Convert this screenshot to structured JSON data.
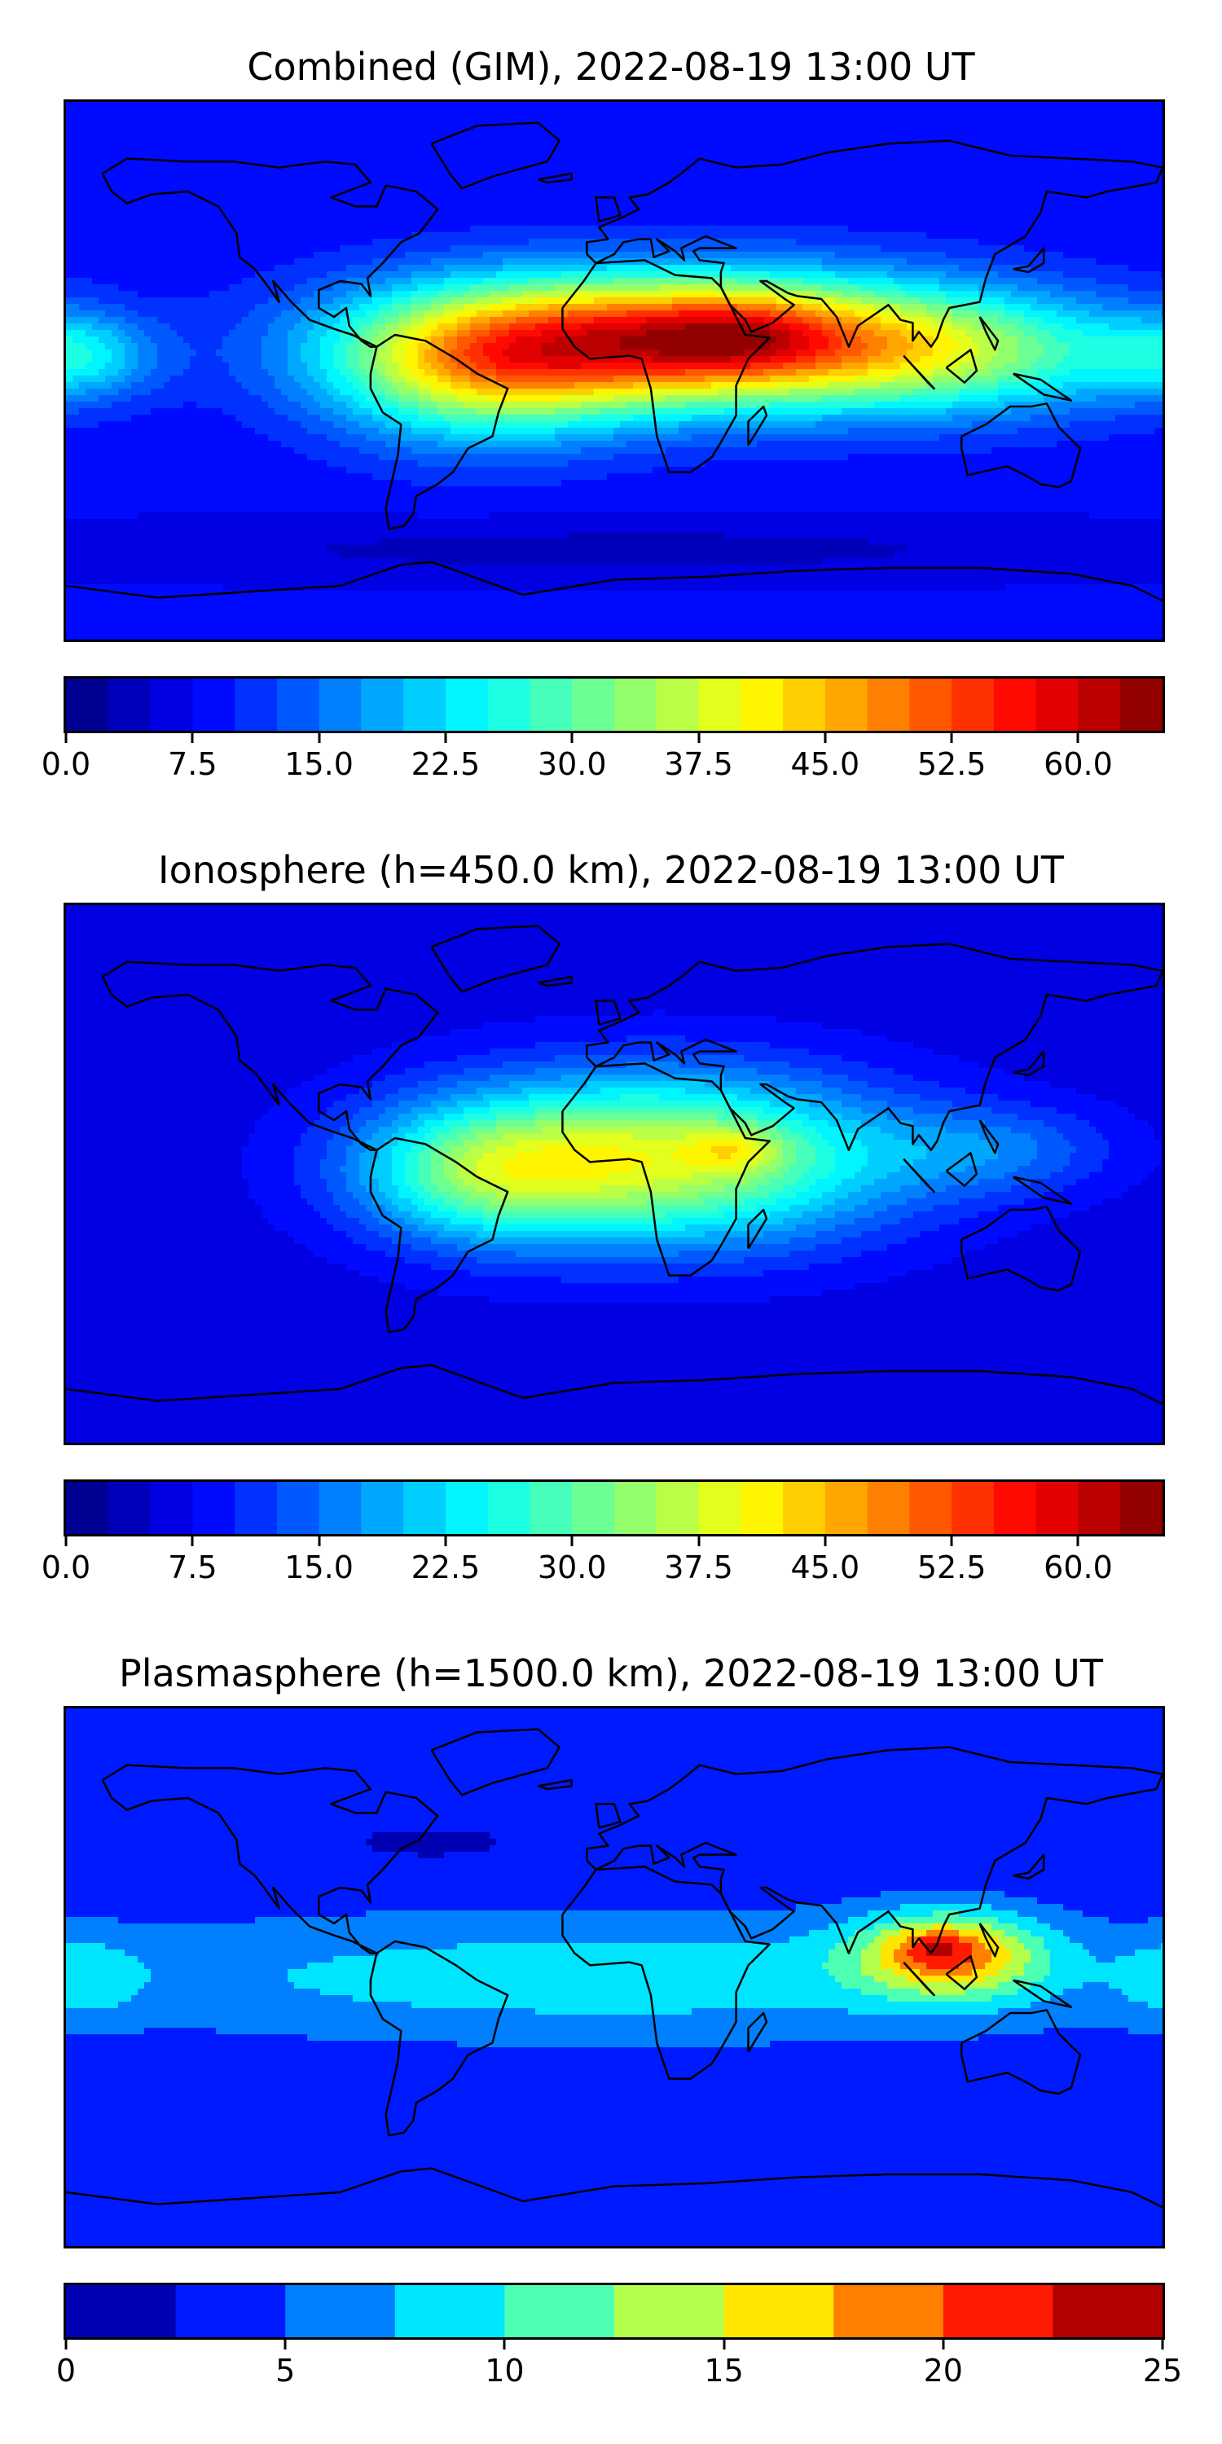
{
  "panels": [
    {
      "title": "Combined (GIM), 2022-08-19 13:00 UT",
      "colorbar": {
        "min": 0,
        "max": 65,
        "levels": 26,
        "colormap": "jet",
        "ticks": [
          "0.0",
          "7.5",
          "15.0",
          "22.5",
          "30.0",
          "37.5",
          "45.0",
          "52.5",
          "60.0"
        ],
        "tick_values": [
          0,
          7.5,
          15,
          22.5,
          30,
          37.5,
          45,
          52.5,
          60
        ]
      },
      "field": {
        "background": 8,
        "features": [
          {
            "lon": 25,
            "lat": 10,
            "rx": 90,
            "ry": 22,
            "amp": 48
          },
          {
            "lon": 40,
            "lat": 12,
            "rx": 30,
            "ry": 12,
            "amp": 8
          },
          {
            "lon": -45,
            "lat": 0,
            "rx": 50,
            "ry": 25,
            "amp": 22
          },
          {
            "lon": 120,
            "lat": 5,
            "rx": 60,
            "ry": 20,
            "amp": 14
          },
          {
            "lon": -175,
            "lat": 5,
            "rx": 25,
            "ry": 14,
            "amp": 12
          },
          {
            "lon": 0,
            "lat": -60,
            "rx": 180,
            "ry": 10,
            "amp": -4
          }
        ]
      }
    },
    {
      "title": "Ionosphere  (h=450.0 km), 2022-08-19 13:00 UT",
      "colorbar": {
        "min": 0,
        "max": 65,
        "levels": 26,
        "colormap": "jet",
        "ticks": [
          "0.0",
          "7.5",
          "15.0",
          "22.5",
          "30.0",
          "37.5",
          "45.0",
          "52.5",
          "60.0"
        ],
        "tick_values": [
          0,
          7.5,
          15,
          22.5,
          30,
          37.5,
          45,
          52.5,
          60
        ]
      },
      "field": {
        "background": 6,
        "features": [
          {
            "lon": 15,
            "lat": 5,
            "rx": 75,
            "ry": 28,
            "amp": 32
          },
          {
            "lon": 40,
            "lat": 8,
            "rx": 15,
            "ry": 7,
            "amp": 8
          },
          {
            "lon": -45,
            "lat": 0,
            "rx": 40,
            "ry": 22,
            "amp": 15
          },
          {
            "lon": 125,
            "lat": 8,
            "rx": 40,
            "ry": 15,
            "amp": 8
          }
        ]
      }
    },
    {
      "title": "Plasmasphere (h=1500.0 km), 2022-08-19 13:00 UT",
      "colorbar": {
        "min": 0,
        "max": 25,
        "levels": 10,
        "colormap": "jet",
        "ticks": [
          "0",
          "5",
          "10",
          "15",
          "20",
          "25"
        ],
        "tick_values": [
          0,
          5,
          10,
          15,
          20,
          25
        ]
      },
      "field": {
        "background": 3,
        "features": [
          {
            "lon": 0,
            "lat": 0,
            "rx": 200,
            "ry": 22,
            "amp": 6
          },
          {
            "lon": 110,
            "lat": 8,
            "rx": 30,
            "ry": 14,
            "amp": 13
          },
          {
            "lon": 105,
            "lat": 10,
            "rx": 12,
            "ry": 6,
            "amp": 4
          },
          {
            "lon": -175,
            "lat": 0,
            "rx": 20,
            "ry": 15,
            "amp": 4
          },
          {
            "lon": -60,
            "lat": 45,
            "rx": 20,
            "ry": 4,
            "amp": -2
          }
        ]
      }
    }
  ],
  "coastline_color": "#000000"
}
